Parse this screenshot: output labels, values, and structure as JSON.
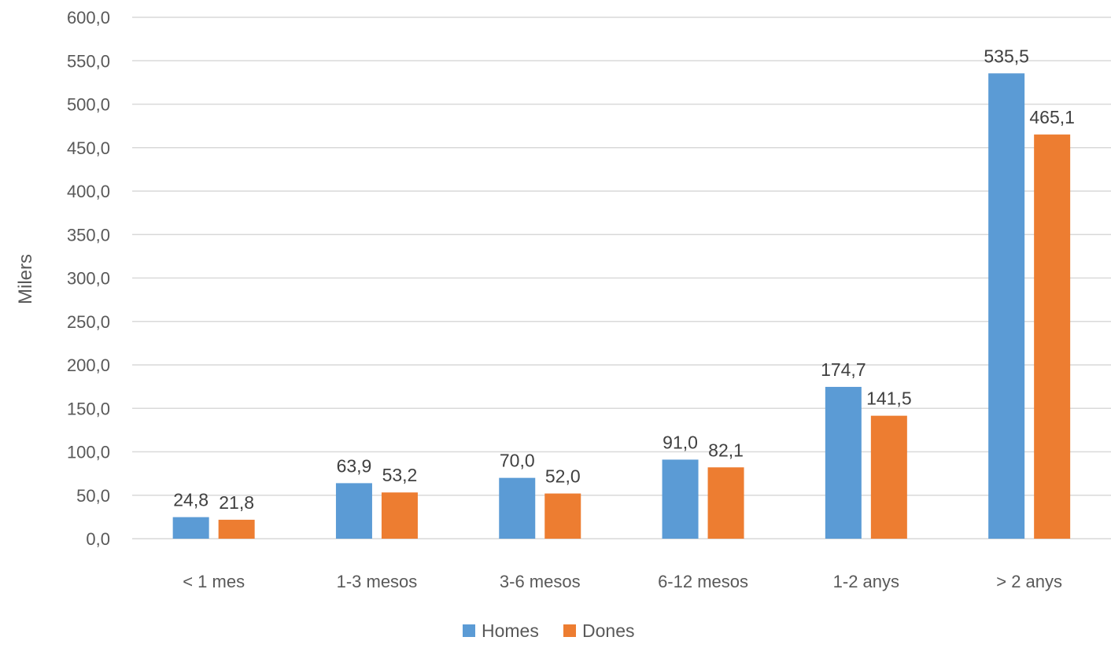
{
  "chart_data": {
    "type": "bar",
    "categories": [
      "< 1 mes",
      "1-3 mesos",
      "3-6 mesos",
      "6-12 mesos",
      "1-2 anys",
      "> 2 anys"
    ],
    "series": [
      {
        "name": "Homes",
        "color": "#5B9BD5",
        "values": [
          24.8,
          63.9,
          70.0,
          91.0,
          174.7,
          535.5
        ],
        "labels": [
          "24,8",
          "63,9",
          "70,0",
          "91,0",
          "174,7",
          "535,5"
        ]
      },
      {
        "name": "Dones",
        "color": "#ED7D31",
        "values": [
          21.8,
          53.2,
          52.0,
          82.1,
          141.5,
          465.1
        ],
        "labels": [
          "21,8",
          "53,2",
          "52,0",
          "82,1",
          "141,5",
          "465,1"
        ]
      }
    ],
    "ylabel": "Milers",
    "ylim": [
      0,
      600
    ],
    "y_ticks": [
      {
        "value": 0,
        "label": "0,0"
      },
      {
        "value": 50,
        "label": "50,0"
      },
      {
        "value": 100,
        "label": "100,0"
      },
      {
        "value": 150,
        "label": "150,0"
      },
      {
        "value": 200,
        "label": "200,0"
      },
      {
        "value": 250,
        "label": "250,0"
      },
      {
        "value": 300,
        "label": "300,0"
      },
      {
        "value": 350,
        "label": "350,0"
      },
      {
        "value": 400,
        "label": "400,0"
      },
      {
        "value": 450,
        "label": "450,0"
      },
      {
        "value": 500,
        "label": "500,0"
      },
      {
        "value": 550,
        "label": "550,0"
      },
      {
        "value": 600,
        "label": "600,0"
      }
    ],
    "grid": true,
    "gridline_color": "#D9D9D9",
    "legend": "bottom"
  }
}
